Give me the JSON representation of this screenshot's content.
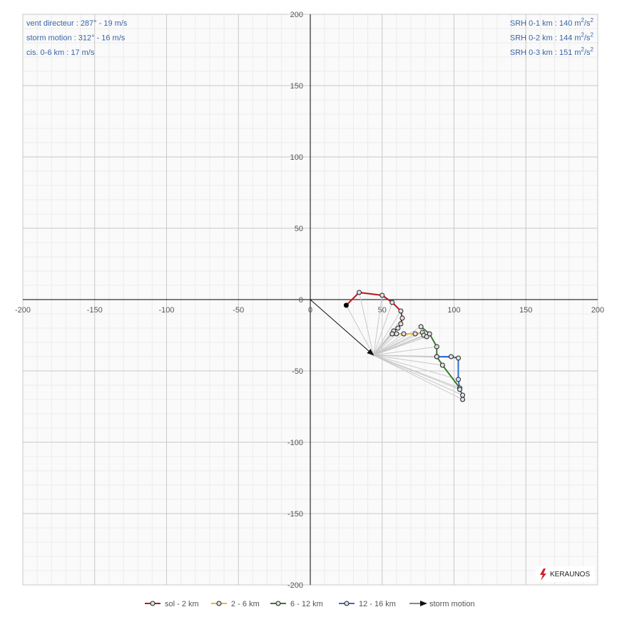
{
  "chart_data": {
    "type": "scatter",
    "title": "",
    "xlabel": "",
    "ylabel": "",
    "xlim": [
      -200,
      200
    ],
    "ylim": [
      -200,
      200
    ],
    "grid": true,
    "legend_position": "bottom",
    "x_ticks": [
      "-200",
      "-150",
      "-100",
      "-50",
      "0",
      "50",
      "100",
      "150",
      "200"
    ],
    "y_ticks": [
      "200",
      "150",
      "100",
      "50",
      "0",
      "-50",
      "-100",
      "-150",
      "-200"
    ],
    "storm_motion_vector": {
      "u": 44,
      "v": -39
    },
    "start_point": {
      "u": 25,
      "v": -4
    },
    "series": [
      {
        "name": "sol - 2 km",
        "color": "#c0171d",
        "points": [
          [
            25,
            -4
          ],
          [
            34,
            5
          ],
          [
            50,
            3
          ],
          [
            57,
            -2
          ],
          [
            63,
            -8
          ],
          [
            64,
            -13
          ],
          [
            63,
            -17
          ],
          [
            61,
            -20
          ],
          [
            58,
            -22
          ],
          [
            57,
            -24
          ]
        ]
      },
      {
        "name": "2 - 6 km",
        "color": "#f0b91f",
        "points": [
          [
            57,
            -24
          ],
          [
            60,
            -24
          ],
          [
            65,
            -24
          ],
          [
            73,
            -24
          ],
          [
            78,
            -23
          ],
          [
            79,
            -25
          ],
          [
            81,
            -26
          ]
        ]
      },
      {
        "name": "6 - 12 km",
        "color": "#3c7a2f",
        "points": [
          [
            77,
            -19
          ],
          [
            83,
            -24
          ],
          [
            88,
            -33
          ],
          [
            88,
            -40
          ],
          [
            92,
            -46
          ],
          [
            104,
            -62
          ]
        ]
      },
      {
        "name": "12 - 16 km",
        "color": "#2e6fcf",
        "points": [
          [
            88,
            -40
          ],
          [
            98,
            -40
          ],
          [
            103,
            -41
          ],
          [
            103,
            -56
          ],
          [
            104,
            -63
          ],
          [
            106,
            -67
          ],
          [
            106,
            -70
          ]
        ]
      }
    ],
    "legend": [
      {
        "label": "sol - 2 km",
        "color": "#c0171d",
        "kind": "series"
      },
      {
        "label": "2 - 6 km",
        "color": "#f0b91f",
        "kind": "series"
      },
      {
        "label": "6 - 12 km",
        "color": "#3c7a2f",
        "kind": "series"
      },
      {
        "label": "12 - 16 km",
        "color": "#2e6fcf",
        "kind": "series"
      },
      {
        "label": "storm motion",
        "color": "#111111",
        "kind": "arrow"
      }
    ],
    "info_left": [
      "vent directeur : 287°  -  19 m/s",
      "storm motion : 312°  -  16 m/s",
      "cis. 0-6 km : 17 m/s"
    ],
    "info_right": [
      {
        "label": "SRH 0-1 km : 140 m",
        "sup1": "2",
        "mid": "/s",
        "sup2": "2"
      },
      {
        "label": "SRH 0-2 km : 144 m",
        "sup1": "2",
        "mid": "/s",
        "sup2": "2"
      },
      {
        "label": "SRH 0-3 km : 151 m",
        "sup1": "2",
        "mid": "/s",
        "sup2": "2"
      }
    ]
  },
  "logo": {
    "text": "KERAUNOS"
  },
  "colors": {
    "axis": "#000000",
    "grid_major": "#c8c8c8",
    "grid_minor": "#ececec",
    "plot_bg": "#fafafa",
    "radial": "#c8c8c8",
    "marker_fill": "#e0e0e0",
    "marker_stroke": "#222222"
  }
}
